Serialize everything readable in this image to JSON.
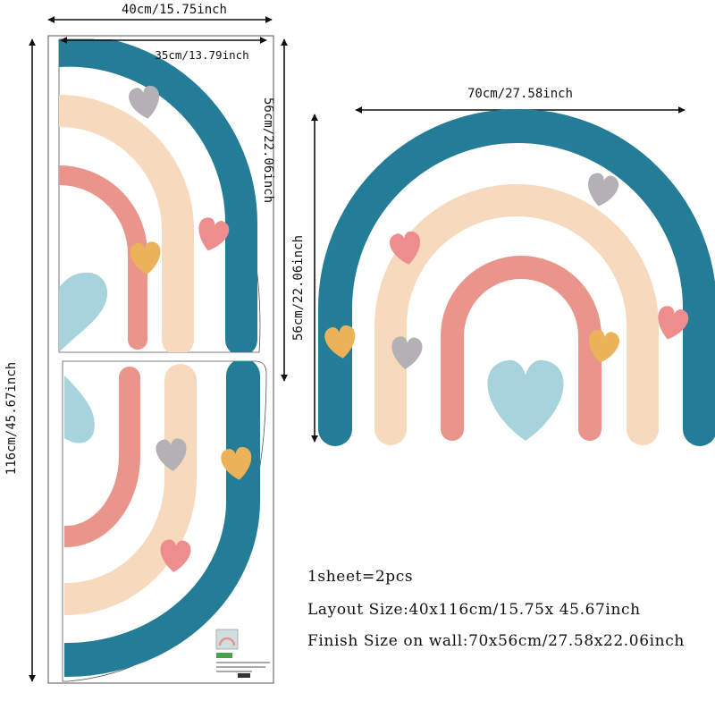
{
  "colors": {
    "teal": "#237d96",
    "peach": "#f7d9bd",
    "salmon": "#e9958b",
    "heart_gray": "#b3b1b4",
    "heart_pink": "#ee8d8d",
    "heart_mustard": "#ebb25a",
    "heart_blue": "#a6d3dc",
    "line": "#111111"
  },
  "dimensions": {
    "layout_width": "40cm/15.75inch",
    "layout_height": "116cm/45.67inch",
    "piece_width": "35cm/13.79inch",
    "piece_height": "56cm/22.06inch",
    "finish_width": "70cm/27.58inch",
    "finish_height": "56cm/22.06inch"
  },
  "specs": {
    "pieces": "1sheet=2pcs",
    "layout_size": "Layout Size:40x116cm/15.75x 45.67inch",
    "finish_size": "Finish Size on wall:70x56cm/27.58x22.06inch"
  }
}
